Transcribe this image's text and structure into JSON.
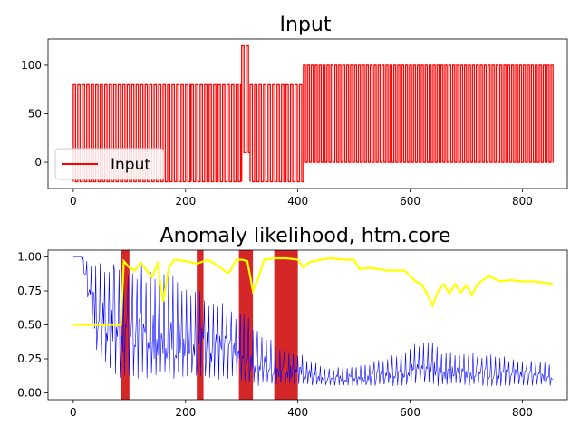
{
  "chart_data": [
    {
      "type": "line",
      "title": "Input",
      "xlim": [
        -45,
        880
      ],
      "ylim": [
        -27,
        127
      ],
      "xticks": [
        0,
        200,
        400,
        600,
        800
      ],
      "yticks": [
        0,
        50,
        100
      ],
      "legend": {
        "placement": "lower-left"
      },
      "series": [
        {
          "name": "Input",
          "color": "#ff0000",
          "pattern": "square wave oscillating between low and high levels",
          "segments": [
            {
              "x_start": 0,
              "x_end": 210,
              "low": -20,
              "high": 80,
              "period": 8
            },
            {
              "x_start": 210,
              "x_end": 300,
              "low": -20,
              "high": 80,
              "period": 8
            },
            {
              "x_start": 300,
              "x_end": 315,
              "low": 10,
              "high": 120,
              "period": 8
            },
            {
              "x_start": 315,
              "x_end": 410,
              "low": -20,
              "high": 80,
              "period": 8
            },
            {
              "x_start": 410,
              "x_end": 855,
              "low": 0,
              "high": 100,
              "period": 7
            }
          ]
        }
      ]
    },
    {
      "type": "line",
      "title": "Anomaly likelihood, htm.core",
      "xlim": [
        -45,
        880
      ],
      "ylim": [
        -0.05,
        1.05
      ],
      "xticks": [
        0,
        200,
        400,
        600,
        800
      ],
      "yticks": [
        0.0,
        0.25,
        0.5,
        0.75,
        1.0
      ],
      "highlighted_regions": [
        {
          "x_start": 85,
          "x_end": 100
        },
        {
          "x_start": 220,
          "x_end": 232
        },
        {
          "x_start": 295,
          "x_end": 320
        },
        {
          "x_start": 358,
          "x_end": 400
        }
      ],
      "highlight_color": "#d62728",
      "series": [
        {
          "color": "#0000ff",
          "x": [
            0,
            15,
            40,
            80,
            120,
            160,
            200,
            250,
            300,
            350,
            400,
            450,
            500,
            550,
            600,
            640,
            660,
            700,
            750,
            800,
            855
          ],
          "y_high": [
            1.0,
            1.0,
            1.0,
            0.95,
            0.95,
            0.9,
            0.85,
            0.7,
            0.6,
            0.4,
            0.3,
            0.18,
            0.2,
            0.25,
            0.35,
            0.42,
            0.3,
            0.3,
            0.28,
            0.25,
            0.22
          ],
          "y_low": [
            1.0,
            1.0,
            0.25,
            0.1,
            0.08,
            0.08,
            0.1,
            0.1,
            0.05,
            0.05,
            0.05,
            0.05,
            0.05,
            0.05,
            0.05,
            0.05,
            0.05,
            0.05,
            0.05,
            0.05,
            0.05
          ]
        },
        {
          "color": "#ffff00",
          "x": [
            0,
            85,
            90,
            100,
            110,
            120,
            140,
            150,
            160,
            170,
            180,
            200,
            220,
            240,
            260,
            275,
            280,
            290,
            300,
            310,
            320,
            330,
            340,
            360,
            380,
            400,
            410,
            420,
            440,
            460,
            480,
            500,
            510,
            530,
            560,
            590,
            600,
            610,
            620,
            630,
            640,
            650,
            660,
            670,
            680,
            690,
            700,
            710,
            720,
            740,
            760,
            780,
            800,
            820,
            840,
            855
          ],
          "y": [
            0.5,
            0.5,
            0.97,
            0.92,
            0.9,
            0.96,
            0.85,
            0.95,
            0.67,
            0.92,
            0.98,
            0.97,
            0.95,
            0.98,
            0.93,
            0.88,
            0.9,
            0.98,
            0.98,
            0.97,
            0.75,
            0.85,
            0.98,
            0.99,
            0.99,
            0.98,
            0.92,
            0.96,
            0.98,
            0.99,
            0.98,
            0.98,
            0.91,
            0.92,
            0.9,
            0.9,
            0.86,
            0.82,
            0.8,
            0.73,
            0.64,
            0.75,
            0.8,
            0.73,
            0.8,
            0.74,
            0.79,
            0.72,
            0.8,
            0.86,
            0.82,
            0.83,
            0.82,
            0.82,
            0.81,
            0.8
          ]
        }
      ]
    }
  ]
}
